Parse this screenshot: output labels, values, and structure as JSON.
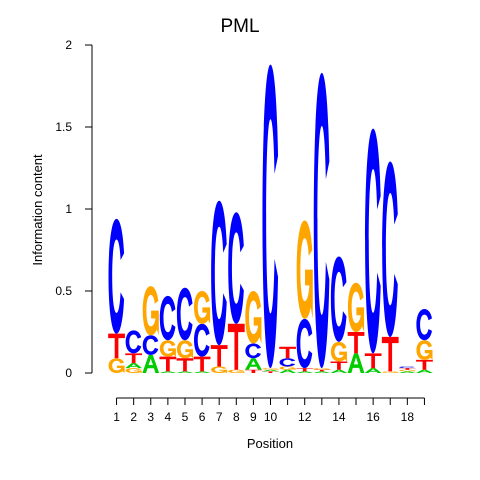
{
  "chart_data": {
    "type": "sequence-logo",
    "title": "PML",
    "xlabel": "Position",
    "ylabel": "Information content",
    "ylim": [
      0,
      2
    ],
    "y_ticks": [
      {
        "value": 0,
        "label": "0"
      },
      {
        "value": 0.5,
        "label": "0.5"
      },
      {
        "value": 1,
        "label": "1"
      },
      {
        "value": 1.5,
        "label": "1.5"
      },
      {
        "value": 2,
        "label": "2"
      }
    ],
    "x_tick_labels": [
      {
        "pos": 1,
        "label": "1"
      },
      {
        "pos": 2,
        "label": "2"
      },
      {
        "pos": 3,
        "label": "3"
      },
      {
        "pos": 4,
        "label": "4"
      },
      {
        "pos": 5,
        "label": "5"
      },
      {
        "pos": 6,
        "label": "6"
      },
      {
        "pos": 7,
        "label": "7"
      },
      {
        "pos": 8,
        "label": "8"
      },
      {
        "pos": 9,
        "label": "9"
      },
      {
        "pos": 10,
        "label": "10"
      },
      {
        "pos": 12,
        "label": "12"
      },
      {
        "pos": 14,
        "label": "14"
      },
      {
        "pos": 16,
        "label": "16"
      },
      {
        "pos": 18,
        "label": "18"
      }
    ],
    "positions_count": 19,
    "base_colors": {
      "A": "#00cc00",
      "C": "#0000ff",
      "G": "#ffa500",
      "T": "#ff0000"
    },
    "stacks": [
      {
        "pos": 1,
        "letters": [
          {
            "base": "G",
            "bits": 0.09
          },
          {
            "base": "T",
            "bits": 0.15
          },
          {
            "base": "C",
            "bits": 0.7
          }
        ]
      },
      {
        "pos": 2,
        "letters": [
          {
            "base": "G",
            "bits": 0.03
          },
          {
            "base": "A",
            "bits": 0.03
          },
          {
            "base": "T",
            "bits": 0.06
          },
          {
            "base": "C",
            "bits": 0.14
          }
        ]
      },
      {
        "pos": 3,
        "letters": [
          {
            "base": "A",
            "bits": 0.11
          },
          {
            "base": "C",
            "bits": 0.12
          },
          {
            "base": "G",
            "bits": 0.3
          }
        ]
      },
      {
        "pos": 4,
        "letters": [
          {
            "base": "A",
            "bits": 0.01
          },
          {
            "base": "T",
            "bits": 0.09
          },
          {
            "base": "G",
            "bits": 0.1
          },
          {
            "base": "C",
            "bits": 0.27
          }
        ]
      },
      {
        "pos": 5,
        "letters": [
          {
            "base": "A",
            "bits": 0.01
          },
          {
            "base": "T",
            "bits": 0.08
          },
          {
            "base": "G",
            "bits": 0.11
          },
          {
            "base": "C",
            "bits": 0.32
          }
        ]
      },
      {
        "pos": 6,
        "letters": [
          {
            "base": "A",
            "bits": 0.01
          },
          {
            "base": "T",
            "bits": 0.09
          },
          {
            "base": "C",
            "bits": 0.2
          },
          {
            "base": "G",
            "bits": 0.2
          }
        ]
      },
      {
        "pos": 7,
        "letters": [
          {
            "base": "G",
            "bits": 0.04
          },
          {
            "base": "T",
            "bits": 0.13
          },
          {
            "base": "C",
            "bits": 0.88
          }
        ]
      },
      {
        "pos": 8,
        "letters": [
          {
            "base": "G",
            "bits": 0.02
          },
          {
            "base": "T",
            "bits": 0.28
          },
          {
            "base": "C",
            "bits": 0.68
          }
        ]
      },
      {
        "pos": 9,
        "letters": [
          {
            "base": "T",
            "bits": 0.02
          },
          {
            "base": "A",
            "bits": 0.07
          },
          {
            "base": "C",
            "bits": 0.09
          },
          {
            "base": "G",
            "bits": 0.32
          }
        ]
      },
      {
        "pos": 10,
        "letters": [
          {
            "base": "T",
            "bits": 0.01
          },
          {
            "base": "A",
            "bits": 0.01
          },
          {
            "base": "G",
            "bits": 0.01
          },
          {
            "base": "C",
            "bits": 1.85
          }
        ]
      },
      {
        "pos": 11,
        "letters": [
          {
            "base": "A",
            "bits": 0.02
          },
          {
            "base": "G",
            "bits": 0.02
          },
          {
            "base": "C",
            "bits": 0.05
          },
          {
            "base": "T",
            "bits": 0.07
          }
        ]
      },
      {
        "pos": 12,
        "letters": [
          {
            "base": "A",
            "bits": 0.01
          },
          {
            "base": "T",
            "bits": 0.02
          },
          {
            "base": "C",
            "bits": 0.3
          },
          {
            "base": "G",
            "bits": 0.6
          }
        ]
      },
      {
        "pos": 13,
        "letters": [
          {
            "base": "A",
            "bits": 0.01
          },
          {
            "base": "T",
            "bits": 0.01
          },
          {
            "base": "G",
            "bits": 0.01
          },
          {
            "base": "C",
            "bits": 1.8
          }
        ]
      },
      {
        "pos": 14,
        "letters": [
          {
            "base": "A",
            "bits": 0.02
          },
          {
            "base": "T",
            "bits": 0.05
          },
          {
            "base": "G",
            "bits": 0.12
          },
          {
            "base": "C",
            "bits": 0.52
          }
        ]
      },
      {
        "pos": 15,
        "letters": [
          {
            "base": "A",
            "bits": 0.12
          },
          {
            "base": "T",
            "bits": 0.13
          },
          {
            "base": "G",
            "bits": 0.3
          }
        ]
      },
      {
        "pos": 16,
        "letters": [
          {
            "base": "A",
            "bits": 0.03
          },
          {
            "base": "T",
            "bits": 0.09
          },
          {
            "base": "C",
            "bits": 1.37
          }
        ]
      },
      {
        "pos": 17,
        "letters": [
          {
            "base": "G",
            "bits": 0.01
          },
          {
            "base": "T",
            "bits": 0.21
          },
          {
            "base": "C",
            "bits": 1.07
          }
        ]
      },
      {
        "pos": 18,
        "letters": [
          {
            "base": "A",
            "bits": 0.01
          },
          {
            "base": "G",
            "bits": 0.01
          },
          {
            "base": "T",
            "bits": 0.01
          },
          {
            "base": "C",
            "bits": 0.01
          }
        ]
      },
      {
        "pos": 19,
        "letters": [
          {
            "base": "A",
            "bits": 0.02
          },
          {
            "base": "T",
            "bits": 0.06
          },
          {
            "base": "G",
            "bits": 0.12
          },
          {
            "base": "C",
            "bits": 0.19
          }
        ]
      }
    ]
  }
}
